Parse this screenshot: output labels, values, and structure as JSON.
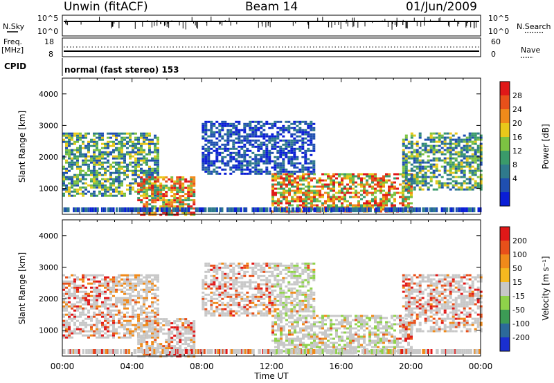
{
  "header": {
    "station": "Unwin (fitACF)",
    "beam": "Beam 14",
    "date": "01/Jun/2009"
  },
  "small_panels": {
    "nsky_label": "N.Sky",
    "nsky_ticks": [
      "10^5",
      "10^0"
    ],
    "nsearch_label": "N.Search",
    "nsearch_ticks": [
      "10^5",
      "10^0"
    ],
    "freq_label": "Freq.",
    "freq_unit": "[MHz]",
    "freq_ticks": [
      "18",
      "8"
    ],
    "nave_label": "Nave",
    "nave_ticks": [
      "60",
      "0"
    ],
    "cpid_label": "CPID",
    "cpid_text": "normal (fast stereo) 153"
  },
  "chart_data": [
    {
      "type": "heatmap",
      "panel": "power",
      "xlabel": "Time UT",
      "ylabel": "Slant Range [km]",
      "xlim": [
        0,
        24
      ],
      "ylim": [
        180,
        4500
      ],
      "yticks": [
        1000,
        2000,
        3000,
        4000
      ],
      "colorbar": {
        "label": "Power [dB]",
        "ticks": [
          "28",
          "24",
          "20",
          "16",
          "12",
          "8",
          "4"
        ],
        "colors": [
          "#0a1ed6",
          "#1f4fb0",
          "#2f7a8c",
          "#3a9a6a",
          "#7cc242",
          "#e8c81a",
          "#f08a1a",
          "#e8501a",
          "#e01818"
        ]
      },
      "description_regions": [
        {
          "t0": 0.0,
          "t1": 5.5,
          "r0": 800,
          "r1": 2800,
          "level": "mid"
        },
        {
          "t0": 4.3,
          "t1": 7.5,
          "r0": 200,
          "r1": 1400,
          "level": "high"
        },
        {
          "t0": 8.0,
          "t1": 14.5,
          "r0": 1500,
          "r1": 3200,
          "level": "low"
        },
        {
          "t0": 12.0,
          "t1": 20.0,
          "r0": 300,
          "r1": 1500,
          "level": "high"
        },
        {
          "t0": 19.5,
          "t1": 24.0,
          "r0": 1000,
          "r1": 2800,
          "level": "mid"
        }
      ]
    },
    {
      "type": "heatmap",
      "panel": "velocity",
      "xlabel": "Time UT",
      "ylabel": "Slant Range [km]",
      "xlim": [
        0,
        24
      ],
      "ylim": [
        180,
        4500
      ],
      "yticks": [
        1000,
        2000,
        3000,
        4000
      ],
      "colorbar": {
        "label": "Velocity [m s⁻¹]",
        "ticks": [
          "200",
          "100",
          "50",
          "15",
          "-15",
          "-50",
          "-100",
          "-200"
        ],
        "colors": [
          "#1a2fd0",
          "#2c6a9a",
          "#3c9b55",
          "#8fd24a",
          "#c8c8c8",
          "#f5b81f",
          "#f08a1a",
          "#e8501a",
          "#e01818"
        ]
      }
    }
  ],
  "xaxis": {
    "ticks": [
      "00:00",
      "04:00",
      "08:00",
      "12:00",
      "16:00",
      "20:00",
      "00:00"
    ],
    "label": "Time UT"
  }
}
